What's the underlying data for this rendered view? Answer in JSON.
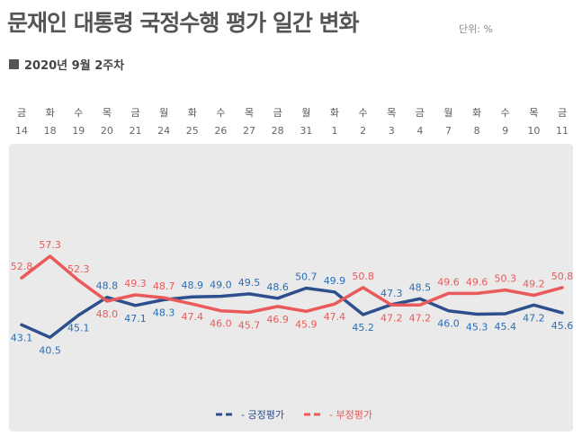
{
  "header": {
    "title": "문재인 대통령 국정수행 평가 일간 변화",
    "unit": "단위: %",
    "subtitle": "2020년 9월 2주차"
  },
  "colors": {
    "positive": "#2d4f8e",
    "negative": "#ea5a5a",
    "plot_bg": "#eaeaea"
  },
  "chart_data": {
    "type": "line",
    "title": "문재인 대통령 국정수행 평가 일간 변화",
    "subtitle": "2020년 9월 2주차",
    "days": [
      "금",
      "화",
      "수",
      "목",
      "금",
      "월",
      "화",
      "수",
      "목",
      "금",
      "월",
      "화",
      "수",
      "목",
      "금",
      "월",
      "화",
      "수",
      "목",
      "금"
    ],
    "categories": [
      "14",
      "18",
      "19",
      "20",
      "21",
      "24",
      "25",
      "26",
      "27",
      "28",
      "31",
      "1",
      "2",
      "3",
      "4",
      "7",
      "8",
      "9",
      "10",
      "11"
    ],
    "series": [
      {
        "name": "긍정평가",
        "values": [
          43.1,
          40.5,
          45.1,
          48.8,
          47.1,
          48.3,
          48.9,
          49.0,
          49.5,
          48.6,
          50.7,
          49.9,
          45.2,
          47.3,
          48.5,
          46.0,
          45.3,
          45.4,
          47.2,
          45.6
        ]
      },
      {
        "name": "부정평가",
        "values": [
          52.8,
          57.3,
          52.3,
          48.0,
          49.3,
          48.7,
          47.4,
          46.0,
          45.7,
          46.9,
          45.9,
          47.4,
          50.8,
          47.2,
          47.2,
          49.6,
          49.6,
          50.3,
          49.2,
          50.8
        ]
      }
    ],
    "legend": "bottom-center",
    "grid": false
  }
}
